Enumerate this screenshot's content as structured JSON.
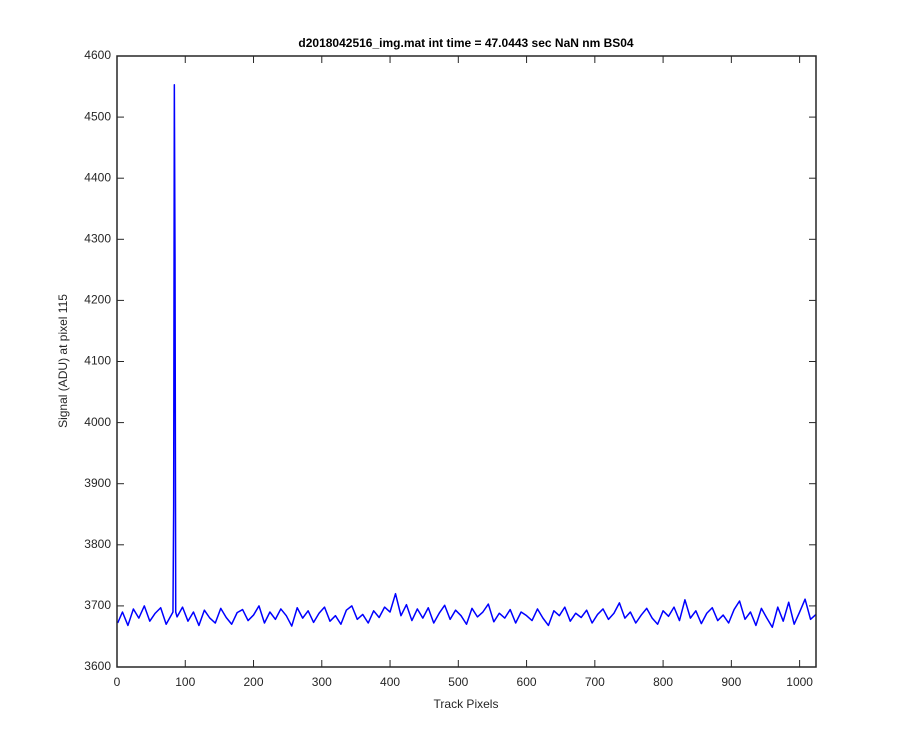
{
  "chart_data": {
    "type": "line",
    "title": "d2018042516_img.mat int time = 47.0443 sec  NaN nm BS04",
    "x_label": "Track Pixels",
    "y_label": "Signal (ADU) at pixel 115",
    "xlim": [
      0,
      1024
    ],
    "ylim": [
      3600,
      4600
    ],
    "xticks": [
      0,
      100,
      200,
      300,
      400,
      500,
      600,
      700,
      800,
      900,
      1000
    ],
    "yticks": [
      3600,
      3700,
      3800,
      3900,
      4000,
      4100,
      4200,
      4300,
      4400,
      4500,
      4600
    ],
    "grid": false,
    "x": [
      1,
      8,
      16,
      24,
      32,
      40,
      48,
      56,
      64,
      72,
      80,
      82,
      83,
      84,
      85,
      86,
      88,
      96,
      104,
      112,
      120,
      128,
      136,
      144,
      152,
      160,
      168,
      176,
      184,
      192,
      200,
      208,
      216,
      224,
      232,
      240,
      248,
      256,
      264,
      272,
      280,
      288,
      296,
      304,
      312,
      320,
      328,
      336,
      344,
      352,
      360,
      368,
      376,
      384,
      392,
      400,
      408,
      416,
      424,
      432,
      440,
      448,
      456,
      464,
      472,
      480,
      488,
      496,
      504,
      512,
      520,
      528,
      536,
      544,
      552,
      560,
      568,
      576,
      584,
      592,
      600,
      608,
      616,
      624,
      632,
      640,
      648,
      656,
      664,
      672,
      680,
      688,
      696,
      704,
      712,
      720,
      728,
      736,
      744,
      752,
      760,
      768,
      776,
      784,
      792,
      800,
      808,
      816,
      824,
      832,
      840,
      848,
      856,
      864,
      872,
      880,
      888,
      896,
      904,
      912,
      920,
      928,
      936,
      944,
      952,
      960,
      968,
      976,
      984,
      992,
      1000,
      1008,
      1016,
      1024
    ],
    "series": [
      {
        "color": "#0000ff",
        "values": [
          3672,
          3690,
          3668,
          3695,
          3680,
          3700,
          3675,
          3688,
          3697,
          3670,
          3686,
          3690,
          3862,
          4553,
          4270,
          3690,
          3682,
          3698,
          3675,
          3690,
          3668,
          3693,
          3680,
          3672,
          3696,
          3681,
          3670,
          3689,
          3694,
          3676,
          3685,
          3700,
          3672,
          3690,
          3678,
          3695,
          3684,
          3667,
          3697,
          3680,
          3692,
          3673,
          3688,
          3698,
          3675,
          3684,
          3670,
          3693,
          3700,
          3678,
          3686,
          3672,
          3692,
          3681,
          3698,
          3690,
          3720,
          3684,
          3702,
          3676,
          3695,
          3680,
          3697,
          3672,
          3688,
          3701,
          3678,
          3693,
          3684,
          3670,
          3696,
          3682,
          3690,
          3703,
          3674,
          3688,
          3680,
          3694,
          3672,
          3690,
          3684,
          3676,
          3695,
          3680,
          3668,
          3692,
          3684,
          3698,
          3675,
          3688,
          3681,
          3693,
          3672,
          3686,
          3695,
          3678,
          3688,
          3705,
          3680,
          3690,
          3672,
          3685,
          3696,
          3680,
          3670,
          3692,
          3683,
          3698,
          3676,
          3710,
          3680,
          3692,
          3671,
          3688,
          3697,
          3676,
          3685,
          3672,
          3694,
          3708,
          3678,
          3690,
          3668,
          3696,
          3680,
          3665,
          3698,
          3675,
          3706,
          3670,
          3690,
          3711,
          3678,
          3686
        ]
      }
    ]
  }
}
